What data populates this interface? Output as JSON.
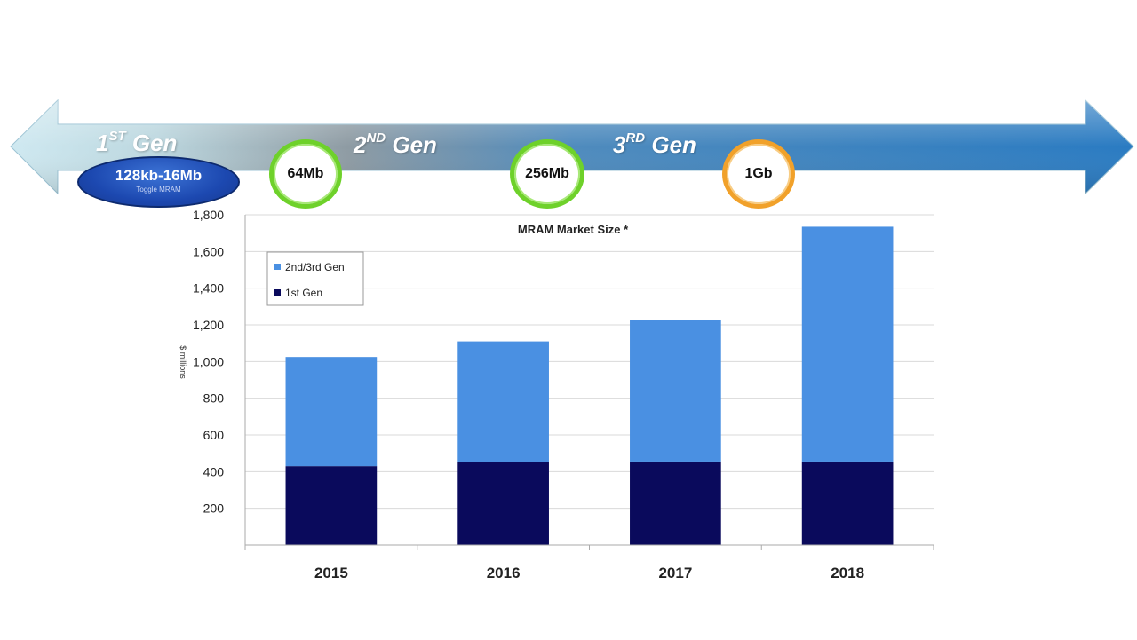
{
  "timeline": {
    "gens": [
      {
        "main": "1",
        "sup": "ST",
        "rest": " Gen"
      },
      {
        "main": "2",
        "sup": "ND",
        "rest": " Gen"
      },
      {
        "main": "3",
        "sup": "RD",
        "rest": " Gen"
      }
    ],
    "first_gen_badge": {
      "main": "128kb-16Mb",
      "sub": "Toggle MRAM"
    },
    "badges": [
      {
        "label": "64Mb",
        "color": "green"
      },
      {
        "label": "256Mb",
        "color": "green"
      },
      {
        "label": "1Gb",
        "color": "orange"
      }
    ],
    "colors": {
      "arrow_left": "#c6e4ee",
      "arrow_mid": "#8b9aa2",
      "arrow_right": "#2b7fc4"
    }
  },
  "chart_data": {
    "type": "bar",
    "stacked": true,
    "title": "MRAM Market Size *",
    "ylabel": "$ millions",
    "xlabel": "",
    "categories": [
      "2015",
      "2016",
      "2017",
      "2018"
    ],
    "series": [
      {
        "name": "1st Gen",
        "color": "#0a0a5c",
        "values": [
          430,
          450,
          455,
          455
        ]
      },
      {
        "name": "2nd/3rd Gen",
        "color": "#4a90e2",
        "values": [
          595,
          660,
          770,
          1280
        ]
      }
    ],
    "ylim": [
      0,
      1800
    ],
    "yticks": [
      "200",
      "400",
      "600",
      "800",
      "1,000",
      "1,200",
      "1,400",
      "1,600",
      "1,800"
    ],
    "legend_order": [
      "2nd/3rd Gen",
      "1st Gen"
    ],
    "legend_position": "top-left",
    "grid": true
  }
}
